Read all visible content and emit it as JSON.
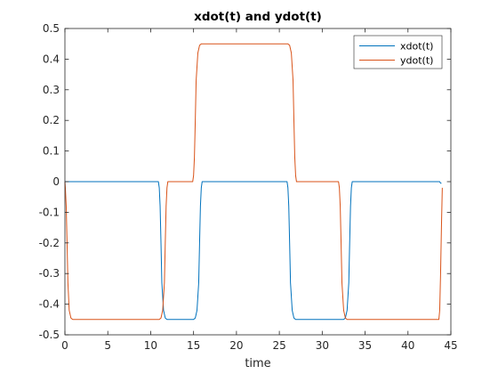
{
  "chart_data": {
    "type": "line",
    "title": "xdot(t) and ydot(t)",
    "xlabel": "time",
    "ylabel": "",
    "xlim": [
      0,
      45
    ],
    "ylim": [
      -0.5,
      0.5
    ],
    "xticks": [
      0,
      5,
      10,
      15,
      20,
      25,
      30,
      35,
      40,
      45
    ],
    "yticks": [
      -0.5,
      -0.4,
      -0.3,
      -0.2,
      -0.1,
      0,
      0.1,
      0.2,
      0.3,
      0.4,
      0.5
    ],
    "xtick_labels": [
      "0",
      "5",
      "10",
      "15",
      "20",
      "25",
      "30",
      "35",
      "40",
      "45"
    ],
    "ytick_labels": [
      "-0.5",
      "-0.4",
      "-0.3",
      "-0.2",
      "-0.1",
      "0",
      "0.1",
      "0.2",
      "0.3",
      "0.4",
      "0.5"
    ],
    "grid": false,
    "legend_position": "top-right",
    "series": [
      {
        "name": "xdot(t)",
        "color": "#0072BD",
        "x": [
          0,
          10.9,
          11.0,
          11.1,
          11.2,
          11.3,
          11.5,
          11.7,
          11.9,
          15.0,
          15.2,
          15.4,
          15.6,
          15.7,
          15.8,
          15.9,
          16.0,
          25.9,
          26.0,
          26.1,
          26.2,
          26.3,
          26.5,
          26.7,
          26.9,
          32.5,
          32.7,
          32.9,
          33.1,
          33.2,
          33.3,
          33.4,
          33.5,
          43.7,
          43.8,
          43.9
        ],
        "y": [
          0,
          0,
          -0.02,
          -0.08,
          -0.2,
          -0.33,
          -0.42,
          -0.445,
          -0.45,
          -0.45,
          -0.445,
          -0.42,
          -0.33,
          -0.2,
          -0.08,
          -0.02,
          0,
          0,
          -0.02,
          -0.08,
          -0.2,
          -0.33,
          -0.42,
          -0.445,
          -0.45,
          -0.45,
          -0.445,
          -0.42,
          -0.33,
          -0.2,
          -0.08,
          -0.02,
          0,
          0,
          -0.005,
          -0.005
        ]
      },
      {
        "name": "ydot(t)",
        "color": "#D95319",
        "x": [
          0,
          0.05,
          0.15,
          0.25,
          0.35,
          0.5,
          0.7,
          0.9,
          11.0,
          11.2,
          11.4,
          11.6,
          11.7,
          11.8,
          11.9,
          12.0,
          14.9,
          15.0,
          15.1,
          15.2,
          15.3,
          15.5,
          15.7,
          15.9,
          26.0,
          26.2,
          26.4,
          26.6,
          26.7,
          26.8,
          26.9,
          27.0,
          31.9,
          32.0,
          32.1,
          32.2,
          32.3,
          32.5,
          32.7,
          32.9,
          43.6,
          43.7,
          43.8,
          43.9,
          44.0
        ],
        "y": [
          0,
          -0.02,
          -0.08,
          -0.2,
          -0.33,
          -0.42,
          -0.445,
          -0.45,
          -0.45,
          -0.445,
          -0.42,
          -0.33,
          -0.2,
          -0.08,
          -0.02,
          0,
          0,
          0.02,
          0.08,
          0.2,
          0.33,
          0.42,
          0.445,
          0.45,
          0.45,
          0.445,
          0.42,
          0.33,
          0.2,
          0.08,
          0.02,
          0,
          0,
          -0.02,
          -0.08,
          -0.2,
          -0.33,
          -0.42,
          -0.445,
          -0.45,
          -0.45,
          -0.42,
          -0.3,
          -0.15,
          -0.02
        ]
      }
    ]
  }
}
